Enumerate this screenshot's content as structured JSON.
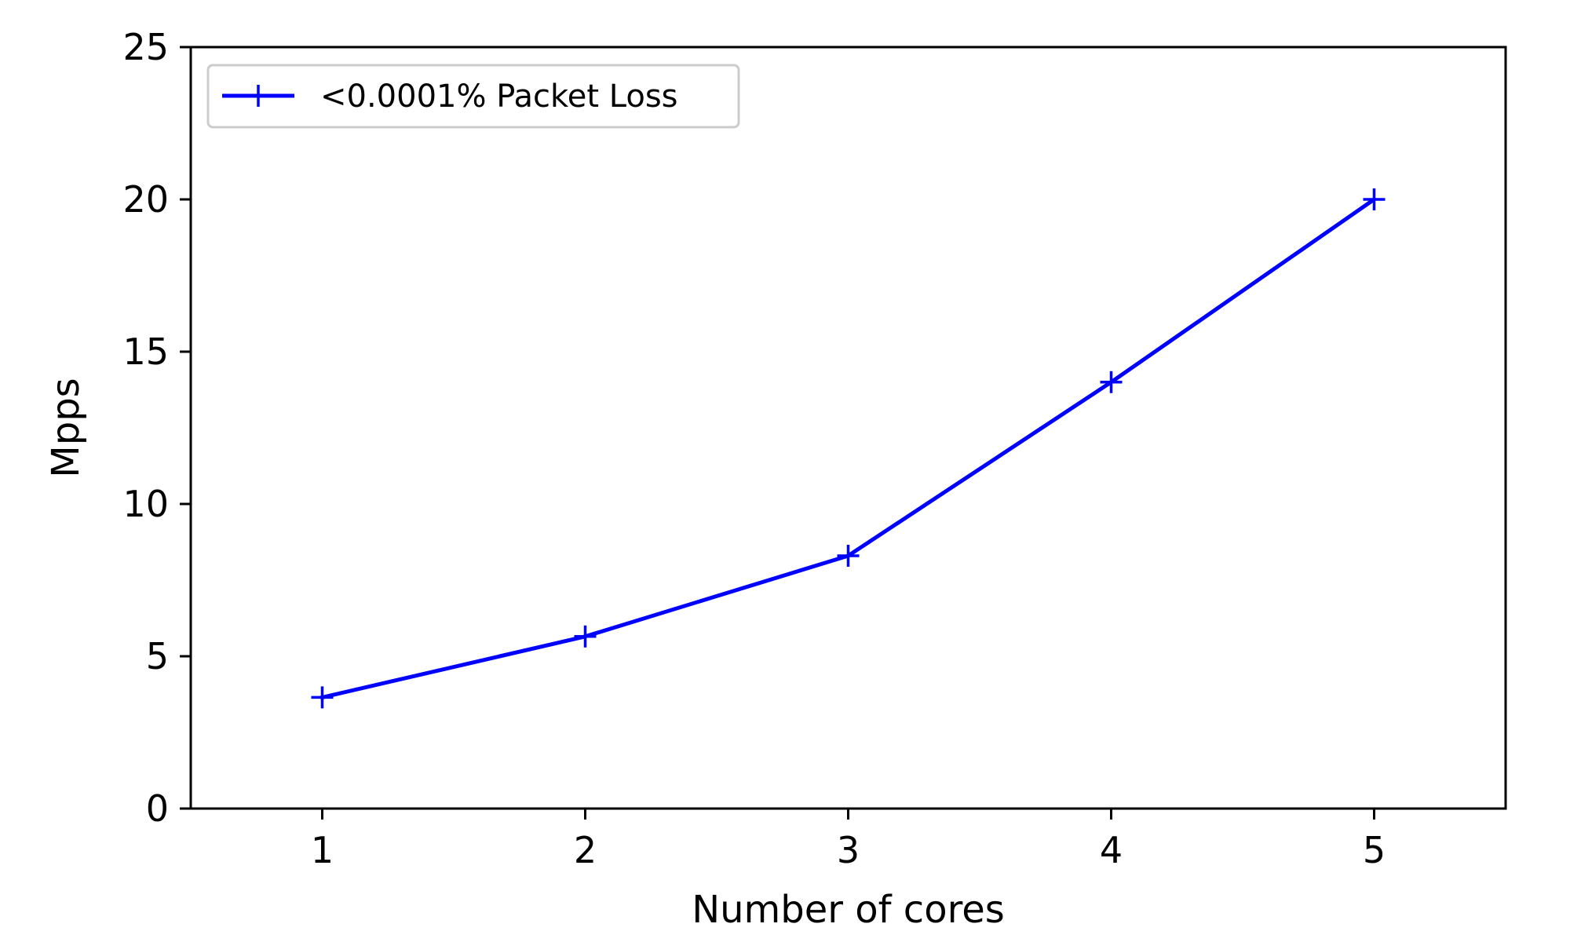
{
  "chart_data": {
    "type": "line",
    "title": "",
    "xlabel": "Number of cores",
    "ylabel": "Mpps",
    "xlim": [
      0.5,
      5.5
    ],
    "ylim": [
      0,
      25
    ],
    "x_ticks": [
      1,
      2,
      3,
      4,
      5
    ],
    "x_tick_labels": [
      "1",
      "2",
      "3",
      "4",
      "5"
    ],
    "y_ticks": [
      0,
      5,
      10,
      15,
      20,
      25
    ],
    "y_tick_labels": [
      "0",
      "5",
      "10",
      "15",
      "20",
      "25"
    ],
    "grid": false,
    "legend_position": "top-left",
    "series": [
      {
        "name": "<0.0001% Packet Loss",
        "color": "#0000ff",
        "marker": "plus",
        "x": [
          1,
          2,
          3,
          4,
          5
        ],
        "y": [
          3.65,
          5.65,
          8.3,
          14.0,
          20.0
        ]
      }
    ]
  }
}
